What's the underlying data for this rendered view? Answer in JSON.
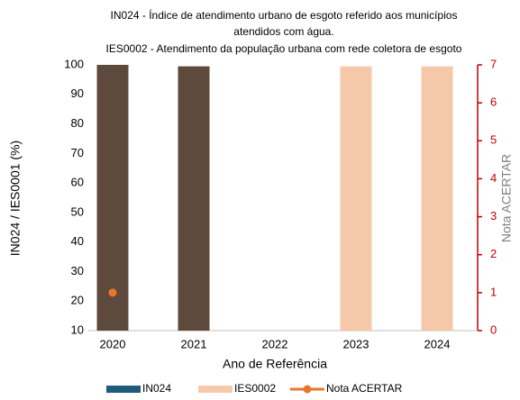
{
  "chart_data": {
    "type": "bar",
    "title": [
      "IN024 - Índice de atendimento urbano de esgoto referido aos municípios",
      "atendidos com água."
    ],
    "subtitle": "IES0002 - Atendimento da população urbana com rede coletora de esgoto",
    "x_label": "Ano de Referência",
    "y_label": "IN024 / IES0001 (%)",
    "y2_label": "Nota ACERTAR",
    "categories": [
      "2020",
      "2021",
      "2022",
      "2023",
      "2024"
    ],
    "series": [
      {
        "name": "IN024",
        "type": "bar",
        "color": "#1f5b7a",
        "point_colors": [
          "#5e4a3d",
          "#5e4a3d",
          null,
          null,
          null
        ],
        "values": [
          100,
          99.5,
          null,
          null,
          null
        ]
      },
      {
        "name": "IES0002",
        "type": "bar",
        "color": "#f5c8aa",
        "values": [
          null,
          null,
          null,
          99.5,
          99.5
        ]
      },
      {
        "name": "Nota ACERTAR",
        "type": "line",
        "axis": "y2",
        "color": "#e8772e",
        "values": [
          1,
          null,
          null,
          null,
          null
        ]
      }
    ],
    "ylim": [
      10,
      100
    ],
    "yticks": [
      10,
      20,
      30,
      40,
      50,
      60,
      70,
      80,
      90,
      100
    ],
    "y2lim": [
      0,
      7
    ],
    "y2ticks": [
      0,
      1,
      2,
      3,
      4,
      5,
      6,
      7
    ],
    "y2_color": "#c00000",
    "legend": "bottom"
  }
}
